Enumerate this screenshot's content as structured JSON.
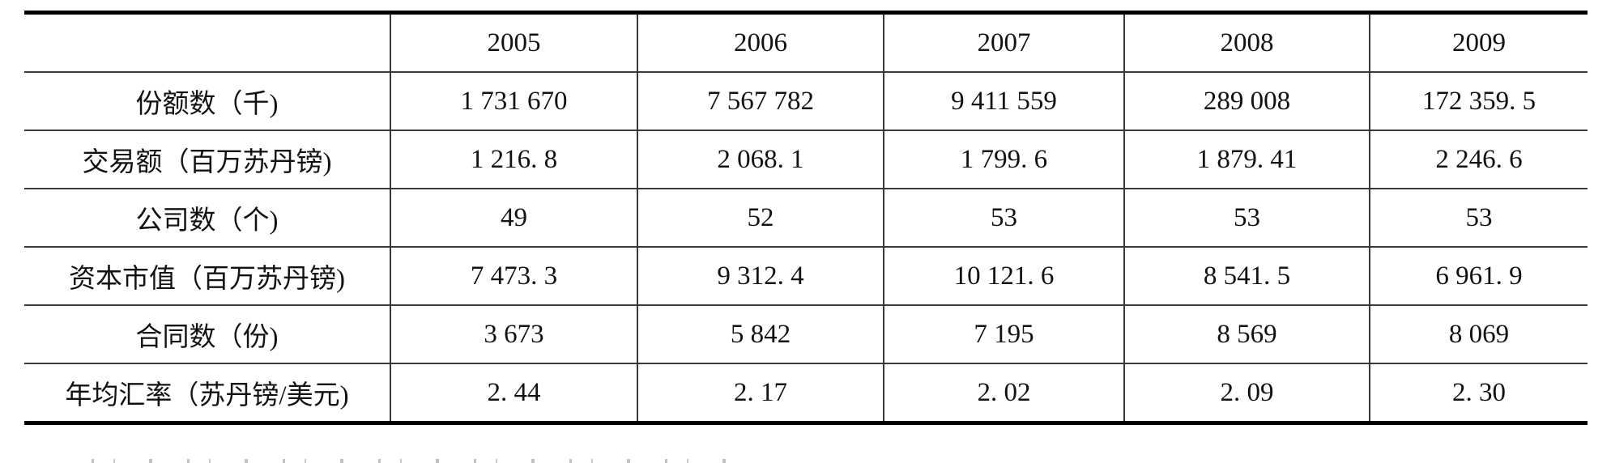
{
  "colors": {
    "background": "#ffffff",
    "text": "#121212",
    "rule_thick": "#000000",
    "rule_thin": "#383838"
  },
  "chart_data": {
    "type": "table",
    "title": "",
    "columns": [
      "",
      "2005",
      "2006",
      "2007",
      "2008",
      "2009"
    ],
    "rows": [
      {
        "label": "份额数（千)",
        "values": [
          "1 731 670",
          "7 567 782",
          "9 411 559",
          "289 008",
          "172 359. 5"
        ]
      },
      {
        "label": "交易额（百万苏丹镑)",
        "values": [
          "1 216. 8",
          "2 068. 1",
          "1 799. 6",
          "1 879. 41",
          "2 246. 6"
        ]
      },
      {
        "label": "公司数（个)",
        "values": [
          "49",
          "52",
          "53",
          "53",
          "53"
        ]
      },
      {
        "label": "资本市值（百万苏丹镑)",
        "values": [
          "7 473. 3",
          "9 312. 4",
          "10 121. 6",
          "8 541. 5",
          "6 961. 9"
        ]
      },
      {
        "label": "合同数（份)",
        "values": [
          "3 673",
          "5 842",
          "7 195",
          "8 569",
          "8 069"
        ]
      },
      {
        "label": "年均汇率（苏丹镑/美元)",
        "values": [
          "2. 44",
          "2. 17",
          "2. 02",
          "2. 09",
          "2. 30"
        ]
      }
    ]
  }
}
